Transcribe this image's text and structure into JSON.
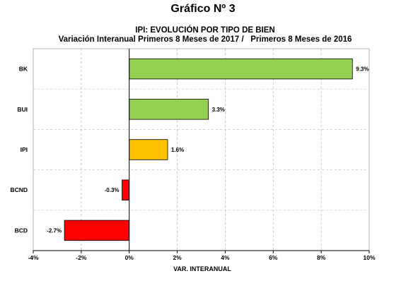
{
  "heading": "Gráfico Nº 3",
  "chart_data": {
    "type": "bar",
    "orientation": "horizontal",
    "title": "IPI: EVOLUCIÓN POR TIPO DE BIEN",
    "subtitle": "Variación Interanual Primeros 8 Meses de 2017 /   Primeros 8 Meses de 2016",
    "xlabel": "VAR. INTERANUAL",
    "ylabel": "",
    "categories": [
      "BK",
      "BUI",
      "IPI",
      "BCND",
      "BCD"
    ],
    "values": [
      9.3,
      3.3,
      1.6,
      -0.3,
      -2.7
    ],
    "value_labels": [
      "9.3%",
      "3.3%",
      "1.6%",
      "-0.3%",
      "-2.7%"
    ],
    "bar_colors": [
      "#92d050",
      "#92d050",
      "#ffc000",
      "#ff0000",
      "#ff0000"
    ],
    "xlim": [
      -4,
      10
    ],
    "xticks": [
      -4,
      -2,
      0,
      2,
      4,
      6,
      8,
      10
    ],
    "xtick_labels": [
      "-4%",
      "-2%",
      "0%",
      "2%",
      "4%",
      "6%",
      "8%",
      "10%"
    ],
    "grid": "vertical dashed",
    "legend": "none"
  }
}
